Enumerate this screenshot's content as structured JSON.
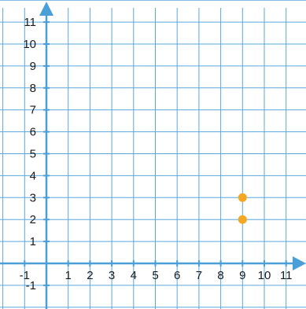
{
  "colors": {
    "grid": "#5aa7dd",
    "axis": "#4a9fd8",
    "point": "#f5a623"
  },
  "chart_data": {
    "type": "scatter",
    "title": "",
    "xlabel": "",
    "ylabel": "",
    "xlim": [
      -1,
      11
    ],
    "ylim": [
      -1,
      11
    ],
    "grid": true,
    "x_ticks": [
      "-1",
      "1",
      "2",
      "3",
      "4",
      "5",
      "6",
      "7",
      "8",
      "9",
      "10",
      "11"
    ],
    "y_ticks": [
      "-1",
      "1",
      "2",
      "3",
      "4",
      "5",
      "6",
      "7",
      "8",
      "9",
      "10",
      "11"
    ],
    "series": [
      {
        "points": [
          {
            "x": 9,
            "y": 3
          },
          {
            "x": 9,
            "y": 2
          }
        ]
      }
    ]
  }
}
